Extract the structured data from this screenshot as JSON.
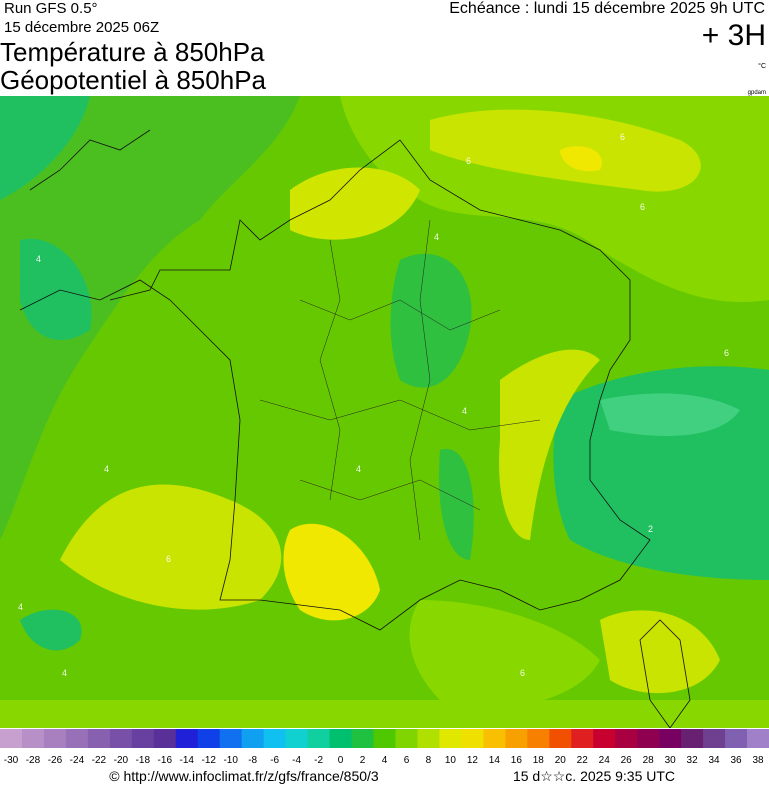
{
  "header": {
    "run": "Run GFS 0.5°",
    "run_date": "15 décembre 2025 06Z",
    "title_line1": "Température à 850hPa",
    "title_line2": "Géopotentiel à 850hPa",
    "valid_time": "Echéance : lundi 15 décembre 2025 9h UTC",
    "lead_time": "+ 3H",
    "unit": "°C",
    "unit2": "gpdam"
  },
  "map": {
    "contour_labels": [
      4,
      6,
      6,
      6,
      4,
      4,
      4,
      4,
      2,
      6,
      4,
      4,
      6,
      6
    ]
  },
  "colorbar": {
    "labels": [
      -30,
      -28,
      -26,
      -24,
      -22,
      -20,
      -18,
      -16,
      -14,
      -12,
      -10,
      -8,
      -6,
      -4,
      -2,
      0,
      2,
      4,
      6,
      8,
      10,
      12,
      14,
      16,
      18,
      20,
      22,
      24,
      26,
      28,
      30,
      32,
      34,
      36,
      38
    ],
    "colors": [
      "#c8a0d0",
      "#b890c8",
      "#a880c0",
      "#9870b8",
      "#8860b0",
      "#7850a8",
      "#6840a0",
      "#583098",
      "#2020d8",
      "#1040e8",
      "#1070f0",
      "#10a0f0",
      "#10c0f0",
      "#10d0d0",
      "#10d0a0",
      "#00c070",
      "#20c040",
      "#50c800",
      "#80d400",
      "#b0e000",
      "#e0e800",
      "#f0e000",
      "#f8c000",
      "#f8a000",
      "#f88000",
      "#f05000",
      "#e02020",
      "#c80030",
      "#a80040",
      "#900050",
      "#780060",
      "#682070",
      "#704090",
      "#8060b0",
      "#a080c8"
    ]
  },
  "footer": {
    "source": "© http://www.infoclimat.fr/z/gfs/france/850/3",
    "timestamp": "15 d☆☆c. 2025  9:35 UTC"
  }
}
